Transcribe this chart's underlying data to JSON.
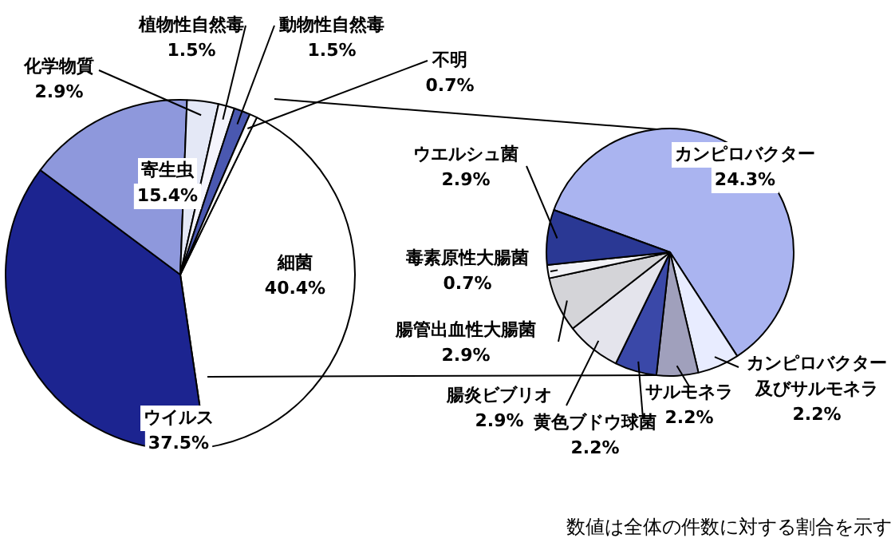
{
  "chart_data": [
    {
      "type": "pie",
      "categories": [
        "細菌",
        "ウイルス",
        "寄生虫",
        "化学物質",
        "植物性自然毒",
        "動物性自然毒",
        "不明"
      ],
      "values": [
        40.4,
        37.5,
        15.4,
        2.9,
        1.5,
        1.5,
        0.7
      ],
      "value_labels": [
        "40.4%",
        "37.5%",
        "15.4%",
        "2.9%",
        "1.5%",
        "1.5%",
        "0.7%"
      ],
      "colors": [
        "#ffffff",
        "#1c2490",
        "#8e98dc",
        "#e4e8f6",
        "#f4f4fc",
        "#4a58b0",
        "#ffffff"
      ]
    },
    {
      "type": "pie",
      "categories": [
        "カンピロバクター",
        "カンピロバクター及びサルモネラ",
        "サルモネラ",
        "黄色ブドウ球菌",
        "腸炎ビブリオ",
        "腸管出血性大腸菌",
        "毒素原性大腸菌",
        "ウエルシュ菌"
      ],
      "values": [
        24.3,
        2.2,
        2.2,
        2.2,
        2.9,
        2.9,
        0.7,
        2.9
      ],
      "value_labels": [
        "24.3%",
        "2.2%",
        "2.2%",
        "2.2%",
        "2.9%",
        "2.9%",
        "0.7%",
        "2.9%"
      ],
      "colors": [
        "#aab4f0",
        "#e8ecff",
        "#a0a0bc",
        "#3a48a8",
        "#e4e4ec",
        "#d4d4d8",
        "#f2f2f6",
        "#2a3894"
      ],
      "annotations": [
        "数値は全体の件数に対する割合を示す"
      ]
    }
  ]
}
